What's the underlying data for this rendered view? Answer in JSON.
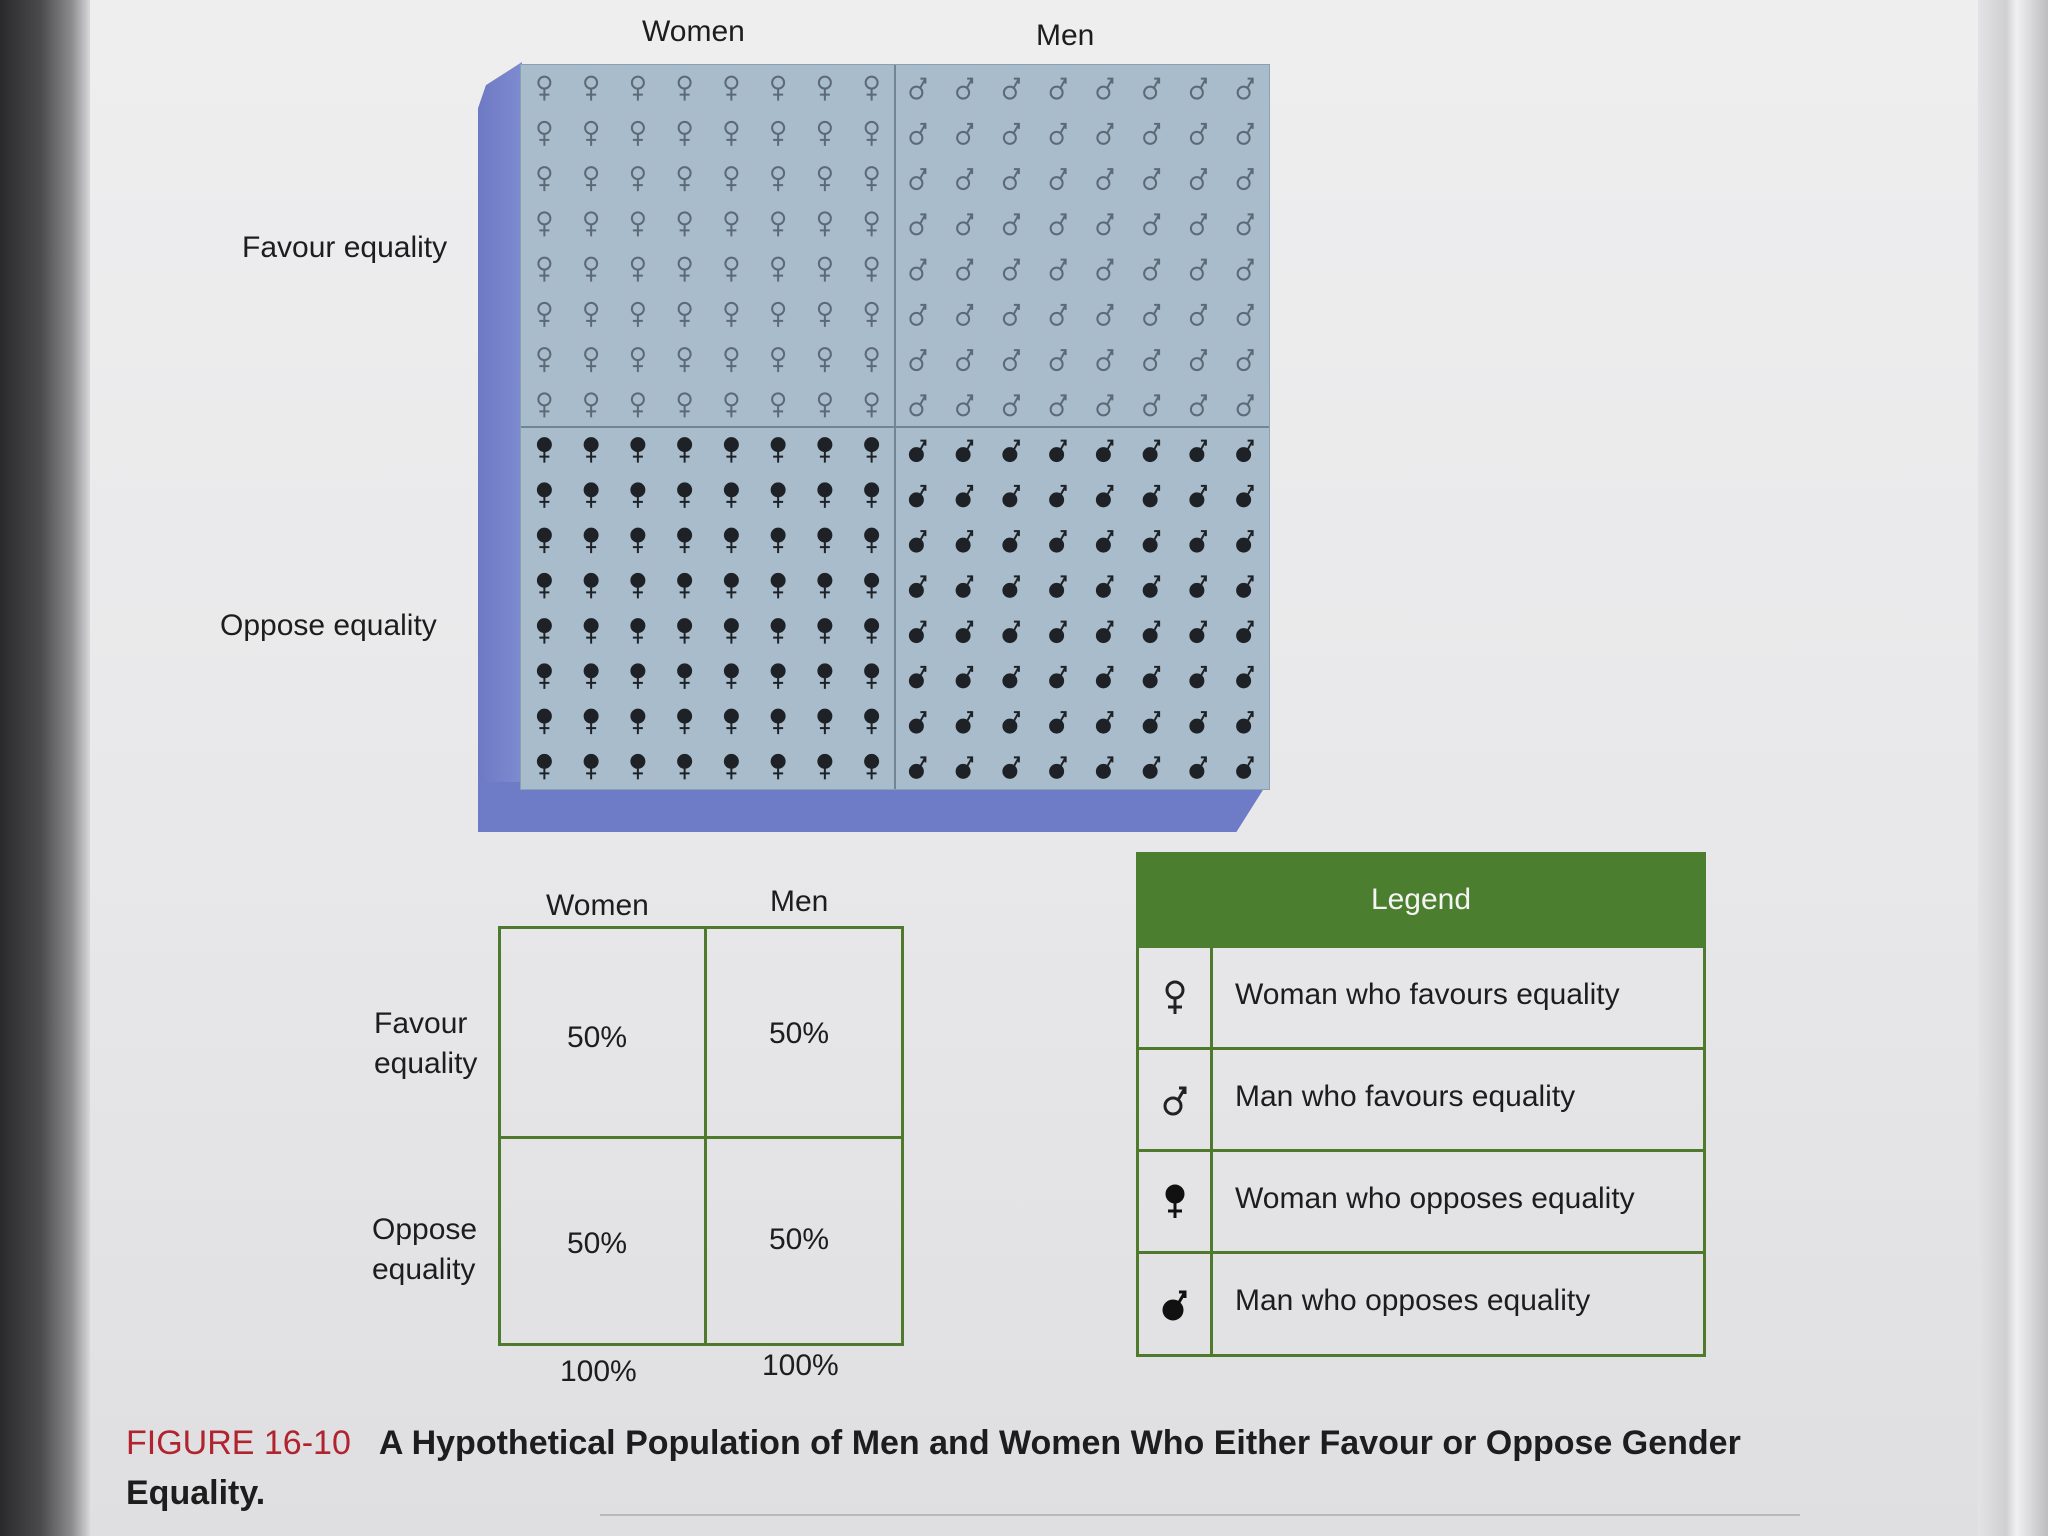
{
  "figure": {
    "number": "FIGURE 16-10",
    "caption": "A Hypothetical Population of Men and Women Who Either Favour or Oppose Gender Equality."
  },
  "pictogram": {
    "col_labels": [
      "Women",
      "Men"
    ],
    "row_labels": [
      "Favour equality",
      "Oppose equality"
    ],
    "rows_per_block": 8,
    "cols_per_block": 8,
    "colors": {
      "face": "#a9bccb",
      "light_symbol": "#5b6a76",
      "dark_symbol": "#1e2226"
    },
    "symbols": {
      "woman": "♀",
      "man": "♂"
    }
  },
  "table": {
    "col_headers": [
      "Women",
      "Men"
    ],
    "row_headers": [
      "Favour equality",
      "Oppose equality"
    ],
    "cells": [
      [
        "50%",
        "50%"
      ],
      [
        "50%",
        "50%"
      ]
    ],
    "col_totals": [
      "100%",
      "100%"
    ]
  },
  "legend": {
    "title": "Legend",
    "items": [
      {
        "label": "Woman who favours equality",
        "symbol": "woman",
        "filled": false
      },
      {
        "label": "Man who favours equality",
        "symbol": "man",
        "filled": false
      },
      {
        "label": "Woman who opposes equality",
        "symbol": "woman",
        "filled": true
      },
      {
        "label": "Man who opposes equality",
        "symbol": "man",
        "filled": true
      }
    ]
  }
}
